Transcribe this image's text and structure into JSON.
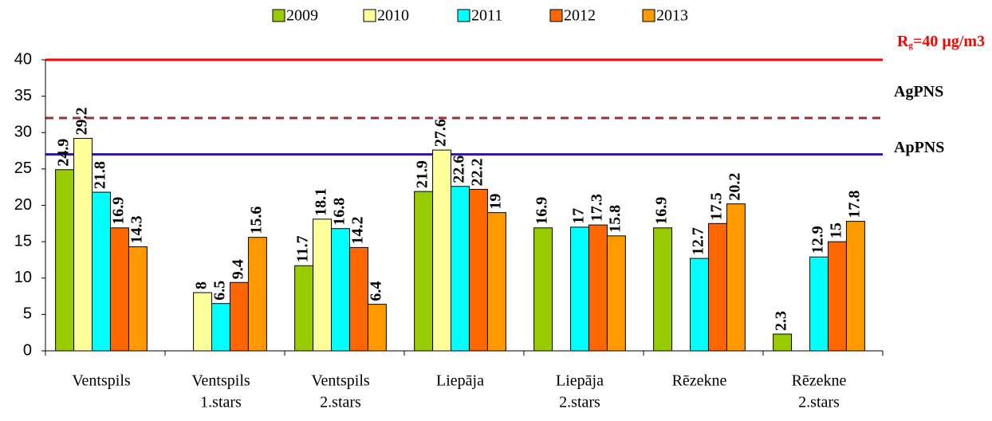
{
  "chart_data": {
    "type": "bar",
    "categories": [
      [
        "Ventspils"
      ],
      [
        "Ventspils",
        "1.stars"
      ],
      [
        "Ventspils",
        "2.stars"
      ],
      [
        "Liepāja"
      ],
      [
        "Liepāja",
        "2.stars"
      ],
      [
        "Rēzekne"
      ],
      [
        "Rēzekne",
        "2.stars"
      ]
    ],
    "series": [
      {
        "name": "2009",
        "color": "#99cc00",
        "values": [
          24.9,
          null,
          11.7,
          21.9,
          16.9,
          16.9,
          2.3
        ]
      },
      {
        "name": "2010",
        "color": "#ffff99",
        "values": [
          29.2,
          8,
          18.1,
          27.6,
          null,
          null,
          null
        ]
      },
      {
        "name": "2011",
        "color": "#00ffff",
        "values": [
          21.8,
          6.5,
          16.8,
          22.6,
          17,
          12.7,
          12.9
        ]
      },
      {
        "name": "2012",
        "color": "#ff6600",
        "values": [
          16.9,
          9.4,
          14.2,
          22.2,
          17.3,
          17.5,
          15
        ]
      },
      {
        "name": "2013",
        "color": "#ff9900",
        "values": [
          14.3,
          15.6,
          6.4,
          19,
          15.8,
          20.2,
          17.8
        ]
      }
    ],
    "ylim": [
      0,
      40
    ],
    "yticks": [
      0,
      5,
      10,
      15,
      20,
      25,
      30,
      35,
      40
    ],
    "reference_lines": [
      {
        "value": 40,
        "color": "#ff0000",
        "style": "solid",
        "label": "R",
        "label_sub": "g",
        "label_rest": "=40 µg/m3",
        "label_color": "#ff0000"
      },
      {
        "value": 32,
        "color": "#993333",
        "style": "dashed",
        "label": "AgPNS",
        "label_color": "#000000"
      },
      {
        "value": 27,
        "color": "#3311aa",
        "style": "solid",
        "label": "ApPNS",
        "label_color": "#000000"
      }
    ]
  }
}
